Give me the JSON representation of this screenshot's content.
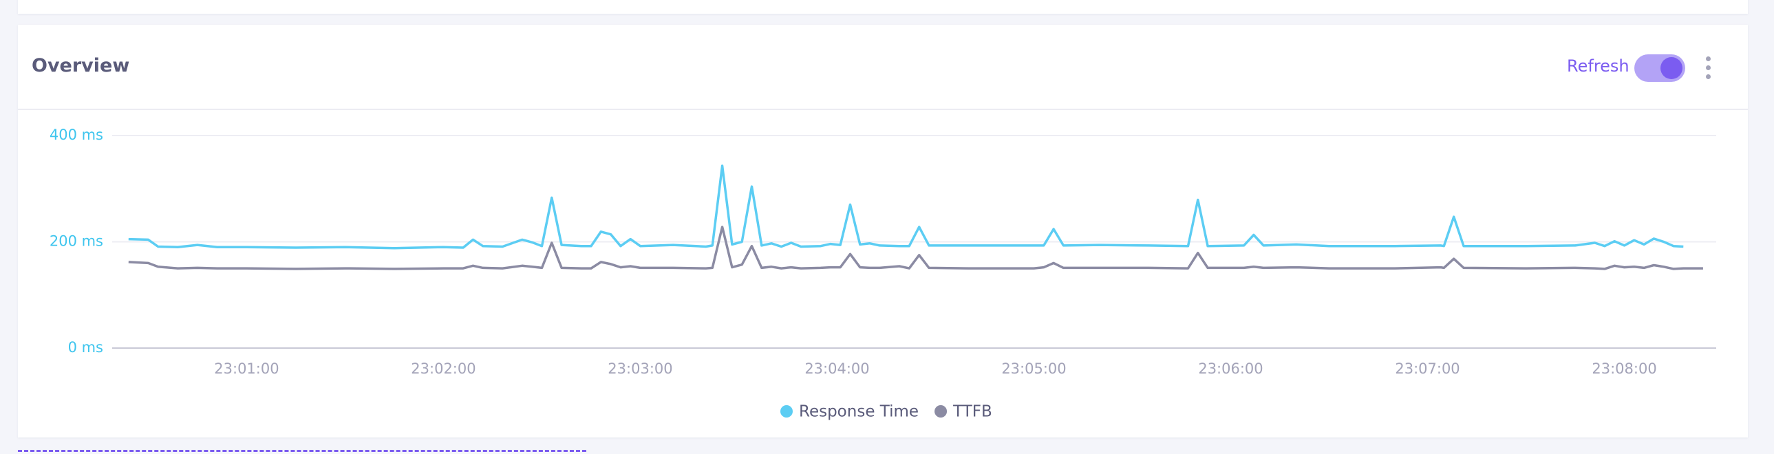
{
  "header": {
    "title": "Overview",
    "refresh": "Refresh"
  },
  "chart_data": {
    "type": "line",
    "x": [
      "23:00:24",
      "23:00:30",
      "23:00:33",
      "23:00:39",
      "23:00:45",
      "23:00:51",
      "23:01:00",
      "23:01:15",
      "23:01:30",
      "23:01:45",
      "23:02:00",
      "23:02:06",
      "23:02:09",
      "23:02:12",
      "23:02:18",
      "23:02:24",
      "23:02:27",
      "23:02:30",
      "23:02:33",
      "23:02:36",
      "23:02:42",
      "23:02:45",
      "23:02:48",
      "23:02:51",
      "23:02:54",
      "23:02:57",
      "23:03:00",
      "23:03:10",
      "23:03:20",
      "23:03:22",
      "23:03:25",
      "23:03:28",
      "23:03:31",
      "23:03:34",
      "23:03:37",
      "23:03:40",
      "23:03:43",
      "23:03:46",
      "23:03:49",
      "23:03:55",
      "23:03:58",
      "23:04:01",
      "23:04:04",
      "23:04:07",
      "23:04:10",
      "23:04:13",
      "23:04:19",
      "23:04:22",
      "23:04:25",
      "23:04:28",
      "23:04:40",
      "23:05:00",
      "23:05:03",
      "23:05:06",
      "23:05:09",
      "23:05:20",
      "23:05:35",
      "23:05:47",
      "23:05:50",
      "23:05:53",
      "23:06:04",
      "23:06:07",
      "23:06:10",
      "23:06:20",
      "23:06:30",
      "23:06:50",
      "23:07:04",
      "23:07:05",
      "23:07:08",
      "23:07:11",
      "23:07:30",
      "23:07:45",
      "23:07:51",
      "23:07:54",
      "23:07:57",
      "23:08:00",
      "23:08:03",
      "23:08:06",
      "23:08:09",
      "23:08:12",
      "23:08:15",
      "23:08:18",
      "23:08:24"
    ],
    "series": [
      {
        "name": "Response Time",
        "color": "#5ccdf3",
        "values": [
          205,
          204,
          191,
          190,
          194,
          190,
          190,
          189,
          190,
          188,
          190,
          189,
          204,
          192,
          191,
          204,
          199,
          192,
          283,
          194,
          192,
          192,
          219,
          214,
          192,
          205,
          192,
          194,
          191,
          193,
          343,
          195,
          200,
          304,
          193,
          197,
          191,
          198,
          191,
          192,
          196,
          194,
          270,
          195,
          197,
          193,
          192,
          192,
          228,
          193,
          193,
          193,
          193,
          224,
          193,
          194,
          193,
          192,
          279,
          192,
          193,
          213,
          193,
          195,
          192,
          192,
          193,
          192,
          247,
          192,
          192,
          193,
          198,
          192,
          201,
          193,
          203,
          195,
          206,
          200,
          192,
          191,
          null
        ]
      },
      {
        "name": "TTFB",
        "color": "#8b8ba3",
        "values": [
          162,
          160,
          153,
          150,
          151,
          150,
          150,
          149,
          150,
          149,
          150,
          150,
          155,
          151,
          150,
          155,
          153,
          151,
          198,
          151,
          150,
          150,
          162,
          158,
          152,
          154,
          151,
          151,
          150,
          151,
          228,
          152,
          157,
          192,
          151,
          153,
          150,
          152,
          150,
          151,
          152,
          152,
          177,
          152,
          151,
          151,
          154,
          150,
          175,
          151,
          150,
          150,
          152,
          160,
          151,
          151,
          151,
          150,
          179,
          151,
          151,
          153,
          151,
          152,
          150,
          150,
          152,
          151,
          168,
          151,
          150,
          151,
          150,
          149,
          155,
          152,
          153,
          151,
          156,
          153,
          149,
          150,
          150
        ]
      }
    ],
    "xlim": [
      "23:00:19",
      "23:08:28"
    ],
    "xticks": [
      "23:01:00",
      "23:02:00",
      "23:03:00",
      "23:04:00",
      "23:05:00",
      "23:06:00",
      "23:07:00",
      "23:08:00"
    ],
    "ylim": [
      0,
      400
    ],
    "yticks": [
      {
        "value": 0,
        "label": "0 ms"
      },
      {
        "value": 200,
        "label": "200 ms"
      },
      {
        "value": 400,
        "label": "400 ms"
      }
    ],
    "grid": true,
    "legend": "bottom"
  }
}
